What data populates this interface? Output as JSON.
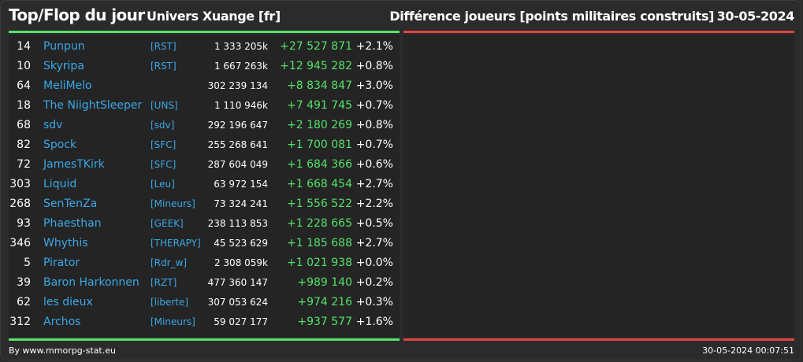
{
  "header": {
    "title": "Top/Flop du jour",
    "universe": "Univers Xuange [fr]",
    "metric": "Différence joueurs [points militaires construits]",
    "date": "30-05-2024"
  },
  "colors": {
    "accent_top": "#55e26b",
    "accent_flop": "#e0453f",
    "link": "#3ba8e8",
    "gain": "#55e26b"
  },
  "top": [
    {
      "rank": "14",
      "name": "Punpun",
      "tag": "[RST]",
      "points": "1 333 205k",
      "delta": "+27 527 871",
      "pct": "+2.1%"
    },
    {
      "rank": "10",
      "name": "Skyripa",
      "tag": "[RST]",
      "points": "1 667 263k",
      "delta": "+12 945 282",
      "pct": "+0.8%"
    },
    {
      "rank": "64",
      "name": "MeliMelo",
      "tag": "",
      "points": "302 239 134",
      "delta": "+8 834 847",
      "pct": "+3.0%"
    },
    {
      "rank": "18",
      "name": "The NiightSleeper",
      "tag": "[UNS]",
      "points": "1 110 946k",
      "delta": "+7 491 745",
      "pct": "+0.7%"
    },
    {
      "rank": "68",
      "name": "sdv",
      "tag": "[sdv]",
      "points": "292 196 647",
      "delta": "+2 180 269",
      "pct": "+0.8%"
    },
    {
      "rank": "82",
      "name": "Spock",
      "tag": "[SFC]",
      "points": "255 268 641",
      "delta": "+1 700 081",
      "pct": "+0.7%"
    },
    {
      "rank": "72",
      "name": "JamesTKirk",
      "tag": "[SFC]",
      "points": "287 604 049",
      "delta": "+1 684 366",
      "pct": "+0.6%"
    },
    {
      "rank": "303",
      "name": "Liquid",
      "tag": "[Leu]",
      "points": "63 972 154",
      "delta": "+1 668 454",
      "pct": "+2.7%"
    },
    {
      "rank": "268",
      "name": "SenTenZa",
      "tag": "[Mineurs]",
      "points": "73 324 241",
      "delta": "+1 556 522",
      "pct": "+2.2%"
    },
    {
      "rank": "93",
      "name": "Phaesthan",
      "tag": "[GEEK]",
      "points": "238 113 853",
      "delta": "+1 228 665",
      "pct": "+0.5%"
    },
    {
      "rank": "346",
      "name": "Whythis",
      "tag": "[THERAPY]",
      "points": "45 523 629",
      "delta": "+1 185 688",
      "pct": "+2.7%"
    },
    {
      "rank": "5",
      "name": "Pirator",
      "tag": "[Rdr_w]",
      "points": "2 308 059k",
      "delta": "+1 021 938",
      "pct": "+0.0%"
    },
    {
      "rank": "39",
      "name": "Baron Harkonnen",
      "tag": "[RZT]",
      "points": "477 360 147",
      "delta": "+989 140",
      "pct": "+0.2%"
    },
    {
      "rank": "62",
      "name": "les dieux",
      "tag": "[liberte]",
      "points": "307 053 624",
      "delta": "+974 216",
      "pct": "+0.3%"
    },
    {
      "rank": "312",
      "name": "Archos",
      "tag": "[Mineurs]",
      "points": "59 027 177",
      "delta": "+937 577",
      "pct": "+1.6%"
    }
  ],
  "footer": {
    "credit": "By www.mmorpg-stat.eu",
    "generated": "30-05-2024 00:07:51"
  }
}
